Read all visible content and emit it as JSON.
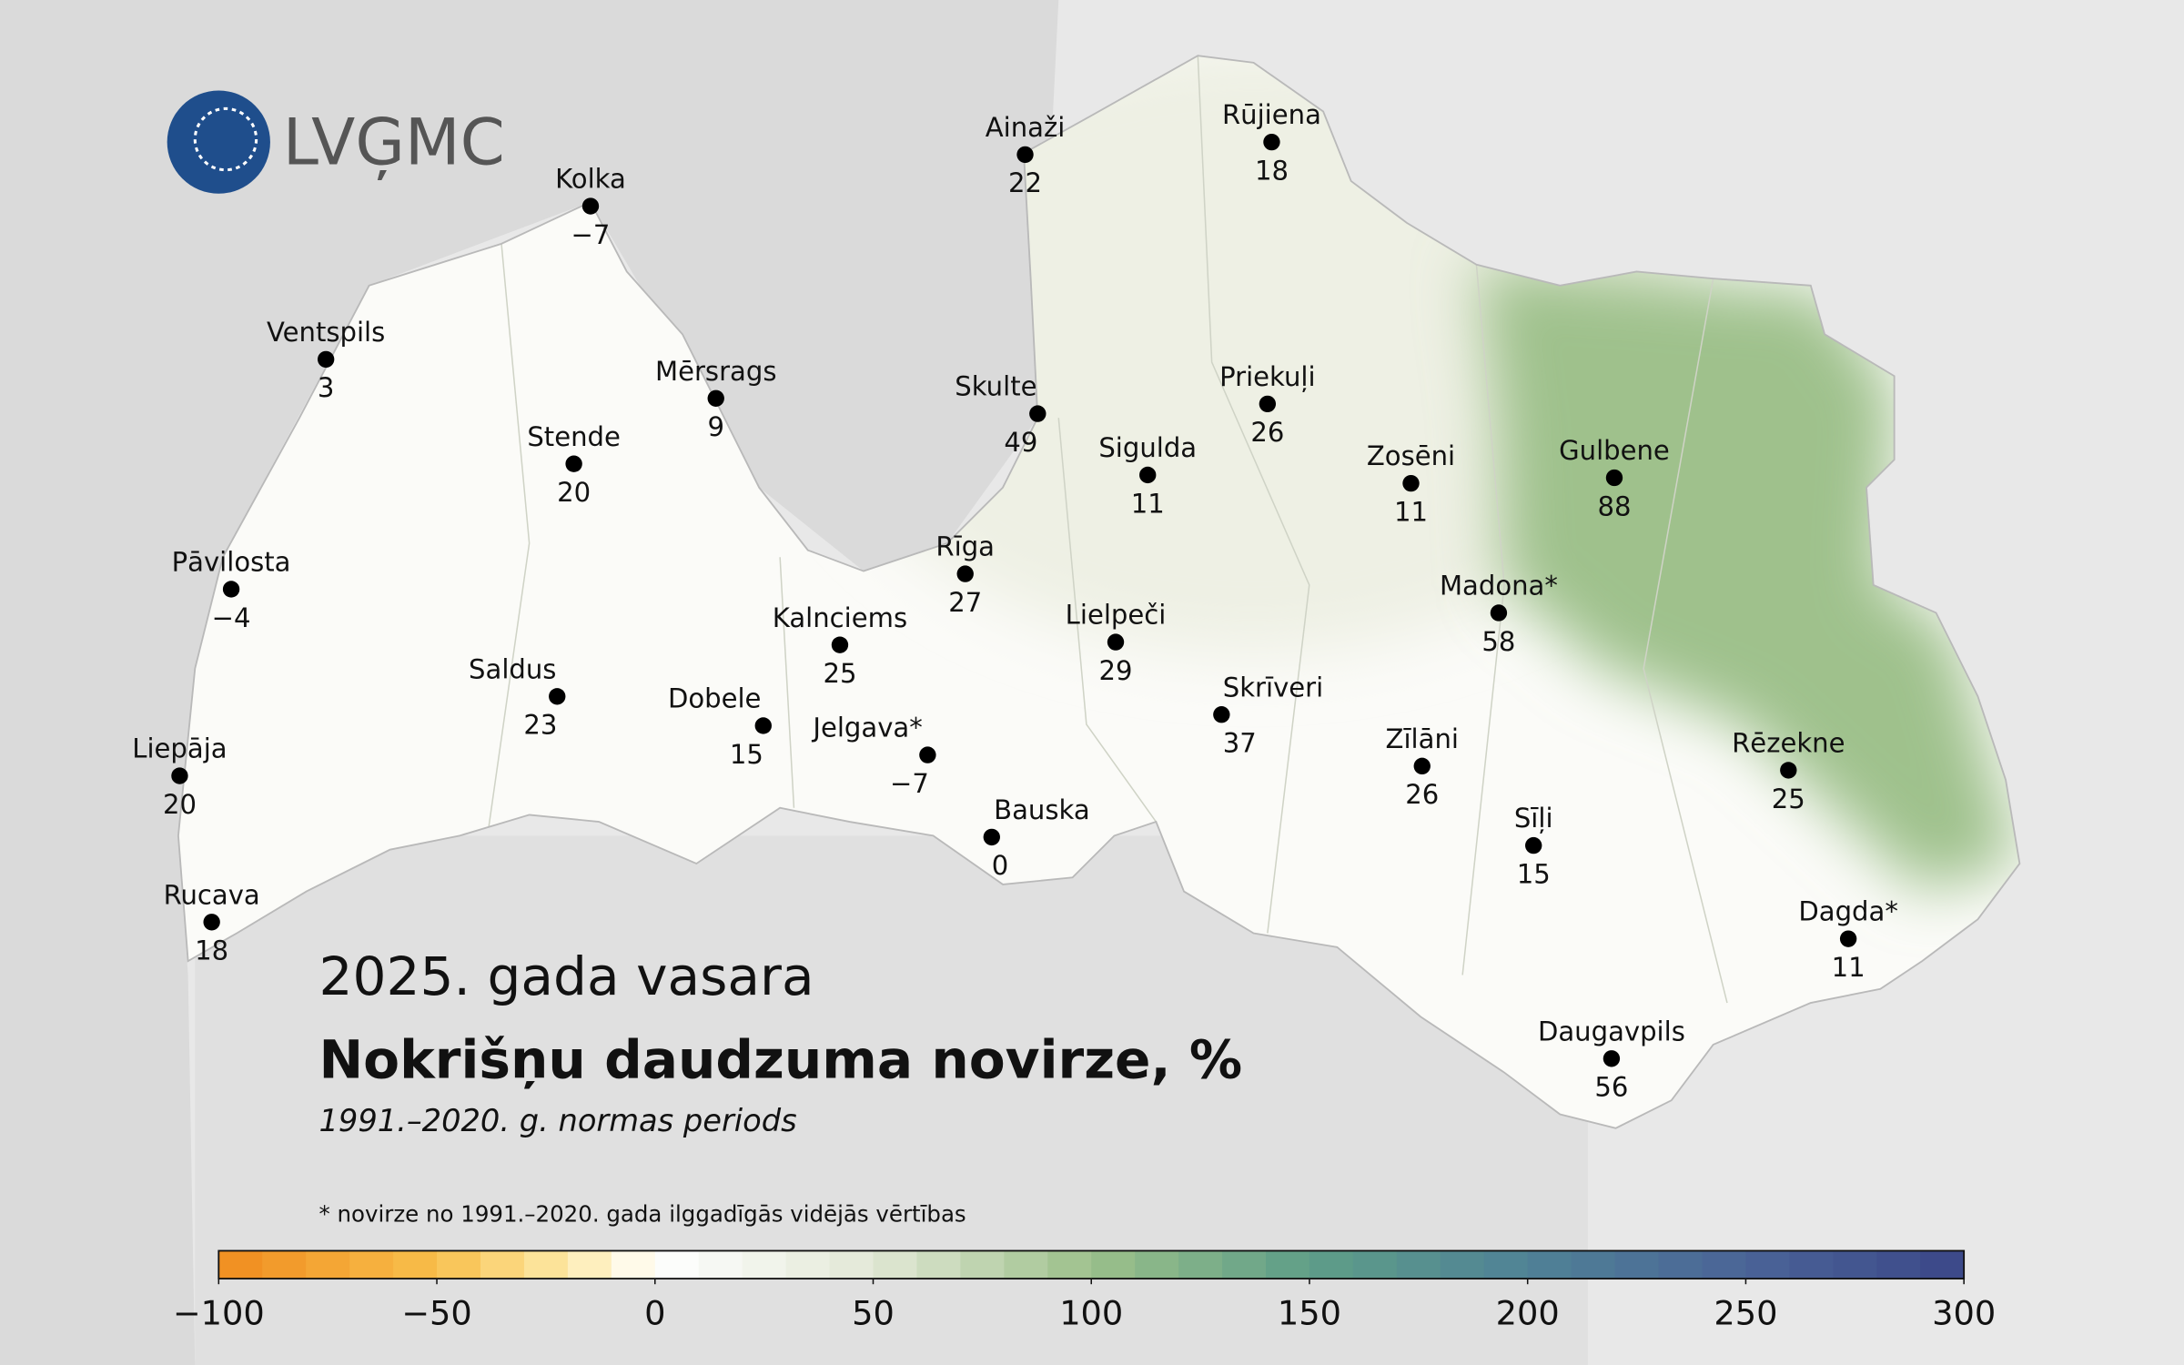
{
  "logo": "LVĢMC",
  "title": "2025. gada vasara",
  "subtitle": "Nokrišņu daudzuma novirze, %",
  "period": "1991.–2020. g. normas periods",
  "footnote": "* novirze no 1991.–2020. gada ilggadīgās vidējās vērtības",
  "stations": [
    {
      "name": "Ainaži",
      "value": 22
    },
    {
      "name": "Rūjiena",
      "value": 18
    },
    {
      "name": "Kolka",
      "value": -7,
      "value_label": "−7"
    },
    {
      "name": "Ventspils",
      "value": 3
    },
    {
      "name": "Mērsrags",
      "value": 9
    },
    {
      "name": "Skulte",
      "value": 49
    },
    {
      "name": "Priekuļi",
      "value": 26
    },
    {
      "name": "Stende",
      "value": 20
    },
    {
      "name": "Sigulda",
      "value": 11
    },
    {
      "name": "Zosēni",
      "value": 11
    },
    {
      "name": "Gulbene",
      "value": 88
    },
    {
      "name": "Pāvilosta",
      "value": -4,
      "value_label": "−4"
    },
    {
      "name": "Rīga",
      "value": 27
    },
    {
      "name": "Madona*",
      "value": 58
    },
    {
      "name": "Kalnciems",
      "value": 25
    },
    {
      "name": "Lielpeči",
      "value": 29
    },
    {
      "name": "Saldus",
      "value": 23
    },
    {
      "name": "Dobele",
      "value": 15
    },
    {
      "name": "Skrīveri",
      "value": 37
    },
    {
      "name": "Jelgava*",
      "value": -7,
      "value_label": "−7"
    },
    {
      "name": "Zīlāni",
      "value": 26
    },
    {
      "name": "Rēzekne",
      "value": 25
    },
    {
      "name": "Liepāja",
      "value": 20
    },
    {
      "name": "Bauska",
      "value": 0
    },
    {
      "name": "Sīļi",
      "value": 15
    },
    {
      "name": "Rucava",
      "value": 18
    },
    {
      "name": "Dagda*",
      "value": 11
    },
    {
      "name": "Daugavpils",
      "value": 56
    }
  ],
  "colorbar": {
    "lim": [
      -100,
      300
    ],
    "step": 10,
    "ticks": [
      {
        "value": -100,
        "label": "−100"
      },
      {
        "value": -50,
        "label": "−50"
      },
      0,
      50,
      100,
      150,
      200,
      250,
      300
    ],
    "stops": [
      {
        "value": -100,
        "color": "#f08c1e"
      },
      {
        "value": -50,
        "color": "#f8bf4c"
      },
      {
        "value": -20,
        "color": "#fdeaa8"
      },
      {
        "value": 0,
        "color": "#ffffff"
      },
      {
        "value": 50,
        "color": "#e2e8d6"
      },
      {
        "value": 100,
        "color": "#9cc08a"
      },
      {
        "value": 150,
        "color": "#5e9e88"
      },
      {
        "value": 200,
        "color": "#4f8296"
      },
      {
        "value": 250,
        "color": "#4a6497"
      },
      {
        "value": 300,
        "color": "#3c4788"
      }
    ]
  }
}
